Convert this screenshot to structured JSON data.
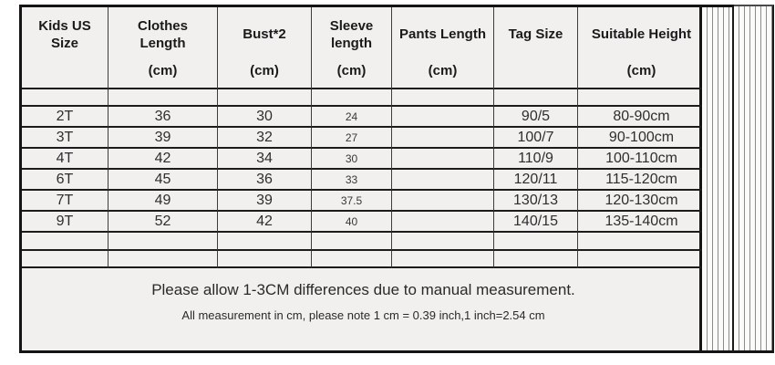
{
  "chart_data": {
    "type": "table",
    "columns": [
      "Kids US Size",
      "Clothes Length (cm)",
      "Bust*2 (cm)",
      "Sleeve length (cm)",
      "Pants Length (cm)",
      "Tag Size",
      "Suitable Height (cm)"
    ],
    "rows": [
      [
        "2T",
        "36",
        "30",
        "24",
        "",
        "90/5",
        "80-90cm"
      ],
      [
        "3T",
        "39",
        "32",
        "27",
        "",
        "100/7",
        "90-100cm"
      ],
      [
        "4T",
        "42",
        "34",
        "30",
        "",
        "110/9",
        "100-110cm"
      ],
      [
        "6T",
        "45",
        "36",
        "33",
        "",
        "120/11",
        "115-120cm"
      ],
      [
        "7T",
        "49",
        "39",
        "37.5",
        "",
        "130/13",
        "120-130cm"
      ],
      [
        "9T",
        "52",
        "42",
        "40",
        "",
        "140/15",
        "135-140cm"
      ]
    ],
    "notes": [
      "Please allow 1-3CM differences due to manual measurement.",
      "All measurement in cm, please note 1 cm = 0.39 inch,1 inch=2.54 cm"
    ],
    "legend_position": "none",
    "grid": true
  },
  "table": {
    "headers": [
      {
        "label": "Kids US Size",
        "unit": ""
      },
      {
        "label": "Clothes Length",
        "unit": "(cm)"
      },
      {
        "label": "Bust*2",
        "unit": "(cm)"
      },
      {
        "label": "Sleeve length",
        "unit": "(cm)"
      },
      {
        "label": "Pants Length",
        "unit": "(cm)"
      },
      {
        "label": "Tag Size",
        "unit": ""
      },
      {
        "label": "Suitable Height",
        "unit": "(cm)"
      }
    ]
  },
  "colors": {
    "cell_background": "#f1f0ee",
    "grid_line_vertical": "#3c3c3c",
    "grid_line_horizontal": "#1c1c1c",
    "outer_border": "#141414",
    "text": "#2e2e2e",
    "page_background": "#ffffff"
  }
}
